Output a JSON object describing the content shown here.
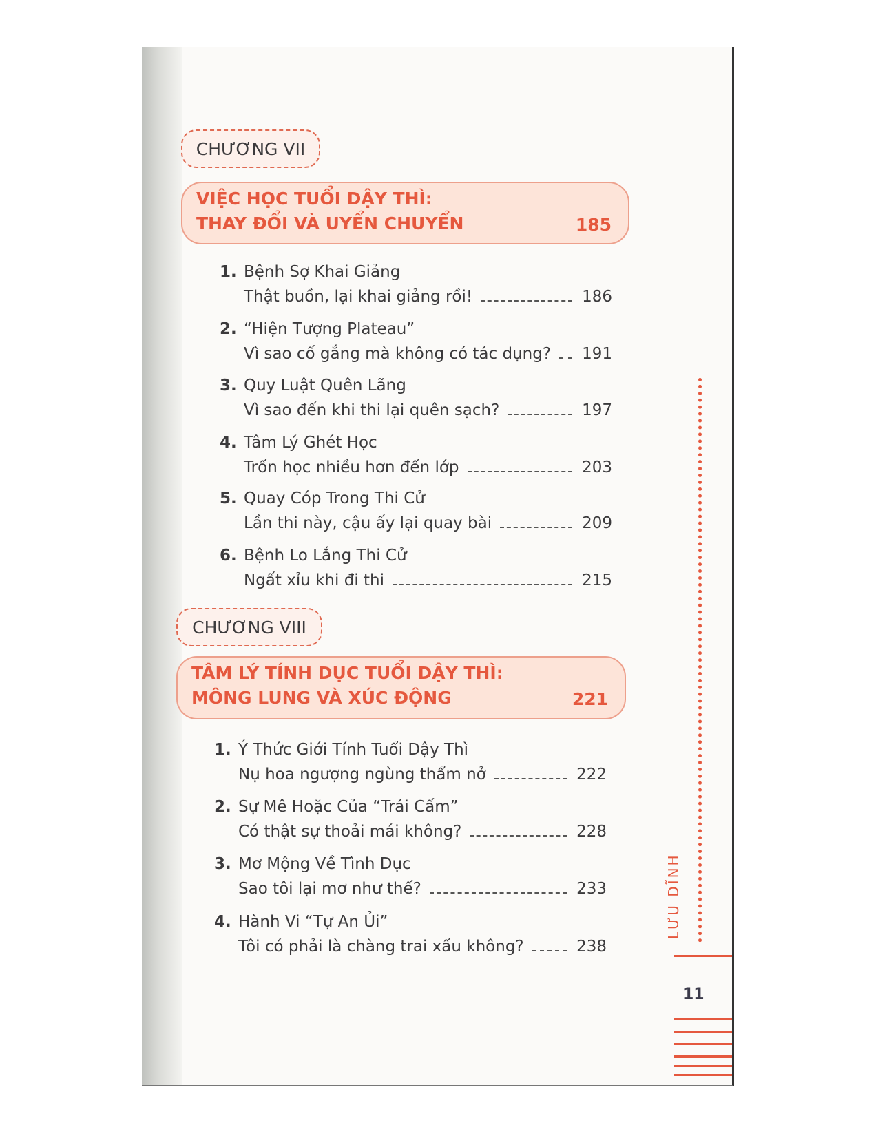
{
  "chapters": [
    {
      "label": "CHƯƠNG VII",
      "title_line1": "VIỆC HỌC TUỔI DẬY THÌ:",
      "title_line2": "THAY ĐỔI VÀ UYỂN CHUYỂN",
      "page": "185",
      "entries": [
        {
          "num": "1.",
          "title": "Bệnh Sợ Khai Giảng",
          "subtitle": "Thật buồn, lại khai giảng rồi!",
          "page": "186"
        },
        {
          "num": "2.",
          "title": "“Hiện Tượng Plateau”",
          "subtitle": "Vì sao cố gắng mà không có tác dụng?",
          "page": "191"
        },
        {
          "num": "3.",
          "title": "Quy Luật Quên Lãng",
          "subtitle": "Vì sao đến khi thi lại quên sạch?",
          "page": "197"
        },
        {
          "num": "4.",
          "title": "Tâm Lý Ghét Học",
          "subtitle": "Trốn học nhiều hơn đến lớp",
          "page": "203"
        },
        {
          "num": "5.",
          "title": "Quay Cóp Trong Thi Cử",
          "subtitle": "Lần thi này, cậu ấy lại quay bài",
          "page": "209"
        },
        {
          "num": "6.",
          "title": "Bệnh Lo Lắng Thi Cử",
          "subtitle": "Ngất xỉu khi đi thi",
          "page": "215"
        }
      ]
    },
    {
      "label": "CHƯƠNG VIII",
      "title_line1": "TÂM LÝ TÍNH DỤC TUỔI DẬY THÌ:",
      "title_line2": "MÔNG LUNG VÀ XÚC ĐỘNG",
      "page": "221",
      "entries": [
        {
          "num": "1.",
          "title": "Ý Thức Giới Tính Tuổi Dậy Thì",
          "subtitle": "Nụ hoa ngượng ngùng thẩm nở",
          "page": "222"
        },
        {
          "num": "2.",
          "title": "Sự Mê Hoặc Của “Trái Cấm”",
          "subtitle": "Có thật sự thoải mái không?",
          "page": "228"
        },
        {
          "num": "3.",
          "title": "Mơ Mộng Về Tình Dục",
          "subtitle": "Sao tôi lại mơ như thế?",
          "page": "233"
        },
        {
          "num": "4.",
          "title": "Hành Vi “Tự An Ủi”",
          "subtitle": "Tôi có phải là chàng trai xấu không?",
          "page": "238"
        }
      ]
    }
  ],
  "running_head": "LƯU DĨNH",
  "page_number": "11",
  "colors": {
    "accent": "#e5583e",
    "title_box_fill": "#fde4d9",
    "text": "#3b3a3c"
  }
}
